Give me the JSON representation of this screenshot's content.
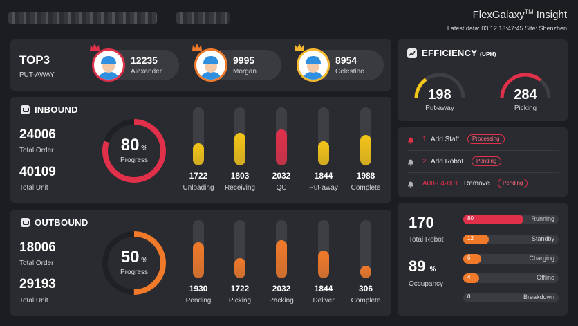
{
  "header": {
    "brand": "FlexGalaxy",
    "brand_tm": "TM",
    "brand_suffix": " Insight",
    "latest_label": "Latest data: 03.12  13:47:45   Site:  Shenzhen"
  },
  "top3": {
    "title": "TOP3",
    "subtitle": "PUT-AWAY",
    "ranks": [
      {
        "value": "12235",
        "name": "Alexander",
        "crown_color": "#e0304a",
        "ring_color": "#e0304a"
      },
      {
        "value": "9995",
        "name": "Morgan",
        "crown_color": "#f07a2a",
        "ring_color": "#f07a2a"
      },
      {
        "value": "8954",
        "name": "Celestine",
        "crown_color": "#f5b82e",
        "ring_color": "#f5b82e"
      }
    ]
  },
  "inbound": {
    "title": "INBOUND",
    "total_order": "24006",
    "total_order_label": "Total Order",
    "total_unit": "40109",
    "total_unit_label": "Total Unit",
    "progress": 80,
    "progress_text": "80",
    "progress_unit": "%",
    "progress_label": "Progress",
    "bars": [
      {
        "value": "1722",
        "label": "Unloading",
        "fill": 0.38,
        "color": "#f5c518"
      },
      {
        "value": "1803",
        "label": "Receiving",
        "fill": 0.56,
        "color": "#f5c518"
      },
      {
        "value": "2032",
        "label": "QC",
        "fill": 0.62,
        "color": "#e0304a"
      },
      {
        "value": "1844",
        "label": "Put-away",
        "fill": 0.42,
        "color": "#f5c518"
      },
      {
        "value": "1988",
        "label": "Complete",
        "fill": 0.52,
        "color": "#f5c518"
      }
    ]
  },
  "outbound": {
    "title": "OUTBOUND",
    "total_order": "18006",
    "total_order_label": "Total Order",
    "total_unit": "29193",
    "total_unit_label": "Total Unit",
    "progress": 50,
    "progress_text": "50",
    "progress_unit": "%",
    "progress_label": "Progress",
    "bars": [
      {
        "value": "1930",
        "label": "Pending",
        "fill": 0.62,
        "color": "#f07a2a"
      },
      {
        "value": "1722",
        "label": "Picking",
        "fill": 0.35,
        "color": "#f07a2a"
      },
      {
        "value": "2032",
        "label": "Packing",
        "fill": 0.65,
        "color": "#f07a2a"
      },
      {
        "value": "1844",
        "label": "Deliver",
        "fill": 0.48,
        "color": "#f07a2a"
      },
      {
        "value": "306",
        "label": "Complete",
        "fill": 0.22,
        "color": "#f07a2a"
      }
    ]
  },
  "efficiency": {
    "title": "EFFICIENCY",
    "unit": "(UPH)",
    "gauges": [
      {
        "value": "198",
        "label": "Put-away",
        "fraction": 0.3,
        "color": "#f5c518"
      },
      {
        "value": "284",
        "label": "Picking",
        "fraction": 0.72,
        "color": "#e0304a"
      }
    ]
  },
  "alerts": [
    {
      "num": "1",
      "text": "Add Staff",
      "status": "Processing"
    },
    {
      "num": "2",
      "text": "Add Robot",
      "status": "Pending"
    },
    {
      "num": "A08-04-001",
      "text": "Remove",
      "status": "Pending"
    }
  ],
  "robots": {
    "total": "170",
    "total_label": "Total Robot",
    "occupancy": "89",
    "occupancy_unit": "%",
    "occupancy_label": "Occupancy",
    "states": [
      {
        "count": "80",
        "label": "Running",
        "fraction": 0.63,
        "color": "#e0304a"
      },
      {
        "count": "12",
        "label": "Standby",
        "fraction": 0.27,
        "color": "#f07a2a"
      },
      {
        "count": "6",
        "label": "Charging",
        "fraction": 0.19,
        "color": "#f07a2a"
      },
      {
        "count": "4",
        "label": "Offline",
        "fraction": 0.17,
        "color": "#f07a2a"
      },
      {
        "count": "0",
        "label": "Breakdown",
        "fraction": 0.0,
        "color": "#f07a2a"
      }
    ]
  }
}
